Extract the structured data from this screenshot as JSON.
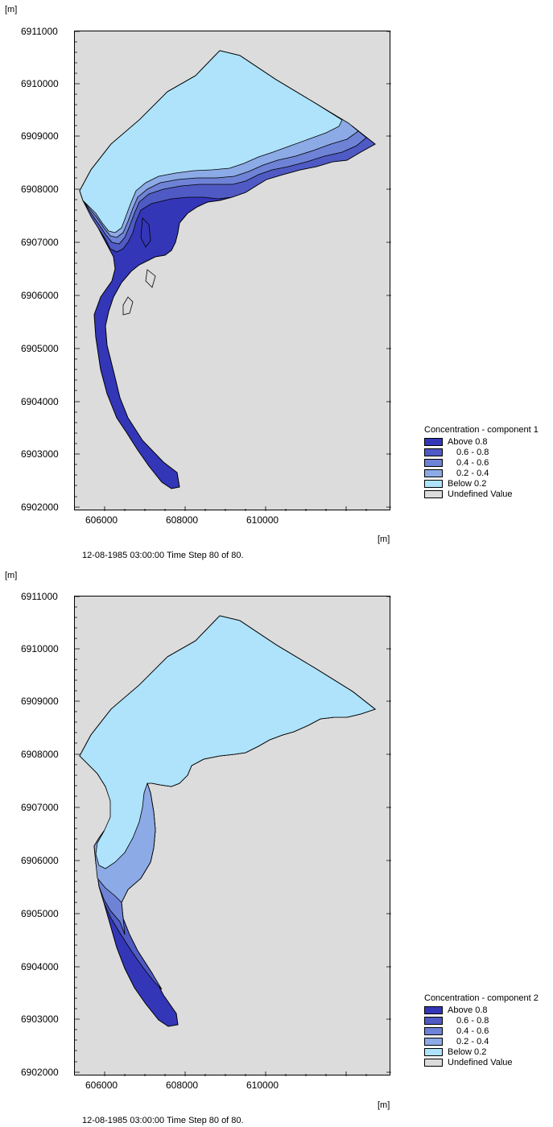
{
  "maps": [
    {
      "y_unit": "[m]",
      "x_unit": "[m]",
      "y_ticks": [
        "6911000",
        "6910000",
        "6909000",
        "6908000",
        "6907000",
        "6906000",
        "6905000",
        "6904000",
        "6903000",
        "6902000"
      ],
      "x_ticks": [
        "606000",
        "608000",
        "610000"
      ],
      "status": "12-08-1985 03:00:00  Time Step 80 of 80.",
      "legend": {
        "title": "Concentration - component 1",
        "items": [
          {
            "label": "Above 0.8",
            "color": "#3436b8",
            "indent": false
          },
          {
            "label": "0.6 - 0.8",
            "color": "#4f5ac4",
            "indent": true
          },
          {
            "label": "0.4 - 0.6",
            "color": "#6e82d6",
            "indent": true
          },
          {
            "label": "0.2 - 0.4",
            "color": "#8caae6",
            "indent": true
          },
          {
            "label": "Below 0.2",
            "color": "#aee3fb",
            "indent": false
          },
          {
            "label": "Undefined Value",
            "color": "#dcdcdc",
            "indent": false
          }
        ]
      }
    },
    {
      "y_unit": "[m]",
      "x_unit": "[m]",
      "y_ticks": [
        "6911000",
        "6910000",
        "6909000",
        "6908000",
        "6907000",
        "6906000",
        "6905000",
        "6904000",
        "6903000",
        "6902000"
      ],
      "x_ticks": [
        "606000",
        "608000",
        "610000"
      ],
      "status": "12-08-1985 03:00:00  Time Step 80 of 80.",
      "legend": {
        "title": "Concentration - component 2",
        "items": [
          {
            "label": "Above 0.8",
            "color": "#3436b8",
            "indent": false
          },
          {
            "label": "0.6 - 0.8",
            "color": "#4f5ac4",
            "indent": true
          },
          {
            "label": "0.4 - 0.6",
            "color": "#6e82d6",
            "indent": true
          },
          {
            "label": "0.2 - 0.4",
            "color": "#8caae6",
            "indent": true
          },
          {
            "label": "Below 0.2",
            "color": "#aee3fb",
            "indent": false
          },
          {
            "label": "Undefined Value",
            "color": "#dcdcdc",
            "indent": false
          }
        ]
      }
    }
  ]
}
